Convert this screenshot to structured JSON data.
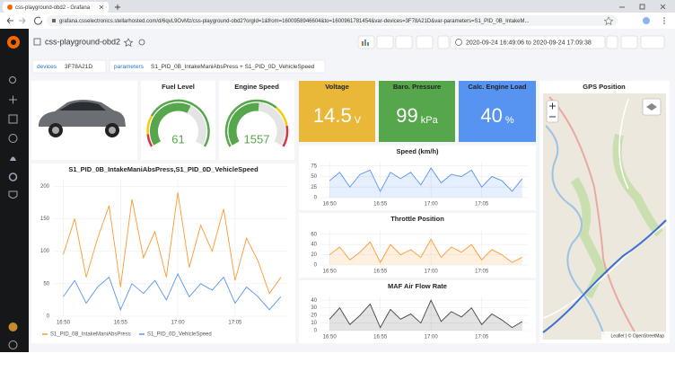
{
  "browser": {
    "tab_title": "css-playground-obd2 - Grafana",
    "url": "grafana.csselectronics.stellarhosted.com/d/6qvL9OvMz/css-playground-obd2?orgId=1&from=1600958946604&to=1600961781454&var-devices=3F78A21D&var-parameters=S1_PID_0B_IntakeM..."
  },
  "dashboard": {
    "title": "css-playground-obd2",
    "time_range": "2020-09-24 16:49:06 to 2020-09-24 17:09:38"
  },
  "variables": [
    {
      "label": "devices",
      "value": "3F78A21D"
    },
    {
      "label": "parameters",
      "value": "S1_PID_0B_IntakeManiAbsPress + S1_PID_0D_VehicleSpeed"
    }
  ],
  "map": {
    "title": "GPS Position",
    "attribution": "Leaflet | © OpenStreetMap"
  },
  "chart_data": [
    {
      "type": "gauge",
      "title": "Fuel Level",
      "value": 61,
      "range": [
        0,
        100
      ],
      "color": "#56a64b",
      "thresholds": [
        {
          "value": 0,
          "color": "#e02f44"
        },
        {
          "value": 10,
          "color": "#f2cc0c"
        },
        {
          "value": 25,
          "color": "#56a64b"
        }
      ]
    },
    {
      "type": "gauge",
      "title": "Engine Speed",
      "value": 1557,
      "range": [
        0,
        3000
      ],
      "color": "#56a64b",
      "thresholds": [
        {
          "value": 0,
          "color": "#56a64b"
        },
        {
          "value": 2000,
          "color": "#f2cc0c"
        },
        {
          "value": 2500,
          "color": "#e02f44"
        }
      ]
    },
    {
      "type": "stat",
      "title": "Voltage",
      "value": 14.5,
      "unit": "V",
      "color": "#eab839"
    },
    {
      "type": "stat",
      "title": "Baro. Pressure",
      "value": 99,
      "unit": "kPa",
      "color": "#56a64b"
    },
    {
      "type": "stat",
      "title": "Calc. Engine Load",
      "value": 40,
      "unit": "%",
      "color": "#5794f2"
    },
    {
      "type": "line",
      "title": "S1_PID_0B_IntakeManiAbsPress,S1_PID_0D_VehicleSpeed",
      "grid": true,
      "area": false,
      "legend": "bottom",
      "x": [
        "16:50",
        "16:51",
        "16:52",
        "16:53",
        "16:54",
        "16:55",
        "16:56",
        "16:57",
        "16:58",
        "16:59",
        "17:00",
        "17:01",
        "17:02",
        "17:03",
        "17:04",
        "17:05",
        "17:06",
        "17:07",
        "17:08",
        "17:09"
      ],
      "xlim": [
        "16:49:06",
        "17:09:38"
      ],
      "xticks": [
        "16:50",
        "16:55",
        "17:00",
        "17:05"
      ],
      "ylim": [
        0,
        210
      ],
      "yticks": [
        0,
        50,
        100,
        150,
        200
      ],
      "series": [
        {
          "name": "S1_PID_0B_IntakeManiAbsPress",
          "color": "#ff9830",
          "values": [
            95,
            150,
            60,
            120,
            170,
            45,
            180,
            90,
            130,
            60,
            190,
            75,
            140,
            100,
            165,
            55,
            120,
            85,
            35,
            60
          ]
        },
        {
          "name": "S1_PID_0D_VehicleSpeed",
          "color": "#5794f2",
          "values": [
            30,
            55,
            20,
            45,
            60,
            10,
            50,
            35,
            55,
            25,
            65,
            30,
            50,
            40,
            60,
            20,
            45,
            30,
            10,
            30
          ]
        }
      ]
    },
    {
      "type": "line",
      "title": "Speed (km/h)",
      "grid": true,
      "area": true,
      "x": [
        "16:50",
        "16:51",
        "16:52",
        "16:53",
        "16:54",
        "16:55",
        "16:56",
        "16:57",
        "16:58",
        "16:59",
        "17:00",
        "17:01",
        "17:02",
        "17:03",
        "17:04",
        "17:05",
        "17:06",
        "17:07",
        "17:08",
        "17:09"
      ],
      "xlim": [
        "16:49:06",
        "17:09:38"
      ],
      "xticks": [
        "16:50",
        "16:55",
        "17:00",
        "17:05"
      ],
      "ylim": [
        0,
        85
      ],
      "yticks": [
        0,
        25,
        50,
        75
      ],
      "series": [
        {
          "name": "Speed",
          "color": "#5794f2",
          "values": [
            40,
            60,
            25,
            55,
            65,
            15,
            60,
            45,
            60,
            30,
            70,
            35,
            55,
            50,
            65,
            25,
            50,
            40,
            15,
            45
          ]
        }
      ]
    },
    {
      "type": "line",
      "title": "Throttle Position",
      "grid": true,
      "area": true,
      "x": [
        "16:50",
        "16:51",
        "16:52",
        "16:53",
        "16:54",
        "16:55",
        "16:56",
        "16:57",
        "16:58",
        "16:59",
        "17:00",
        "17:01",
        "17:02",
        "17:03",
        "17:04",
        "17:05",
        "17:06",
        "17:07",
        "17:08",
        "17:09"
      ],
      "xlim": [
        "16:49:06",
        "17:09:38"
      ],
      "xticks": [
        "16:50",
        "16:55",
        "17:00",
        "17:05"
      ],
      "ylim": [
        0,
        70
      ],
      "yticks": [
        0,
        20,
        40,
        60
      ],
      "series": [
        {
          "name": "Throttle",
          "color": "#ff9830",
          "values": [
            20,
            35,
            10,
            25,
            45,
            5,
            40,
            20,
            30,
            15,
            50,
            15,
            35,
            25,
            40,
            10,
            30,
            20,
            5,
            15
          ]
        }
      ]
    },
    {
      "type": "line",
      "title": "MAF Air Flow Rate",
      "grid": true,
      "area": true,
      "x": [
        "16:50",
        "16:51",
        "16:52",
        "16:53",
        "16:54",
        "16:55",
        "16:56",
        "16:57",
        "16:58",
        "16:59",
        "17:00",
        "17:01",
        "17:02",
        "17:03",
        "17:04",
        "17:05",
        "17:06",
        "17:07",
        "17:08",
        "17:09"
      ],
      "xlim": [
        "16:49:06",
        "17:09:38"
      ],
      "xticks": [
        "16:50",
        "16:55",
        "17:00",
        "17:05"
      ],
      "ylim": [
        0,
        45
      ],
      "yticks": [
        0,
        10,
        20,
        30,
        40
      ],
      "series": [
        {
          "name": "MAF",
          "color": "#444444",
          "values": [
            15,
            30,
            8,
            20,
            35,
            4,
            28,
            15,
            22,
            10,
            40,
            12,
            25,
            18,
            30,
            8,
            22,
            14,
            4,
            12
          ]
        }
      ]
    }
  ]
}
